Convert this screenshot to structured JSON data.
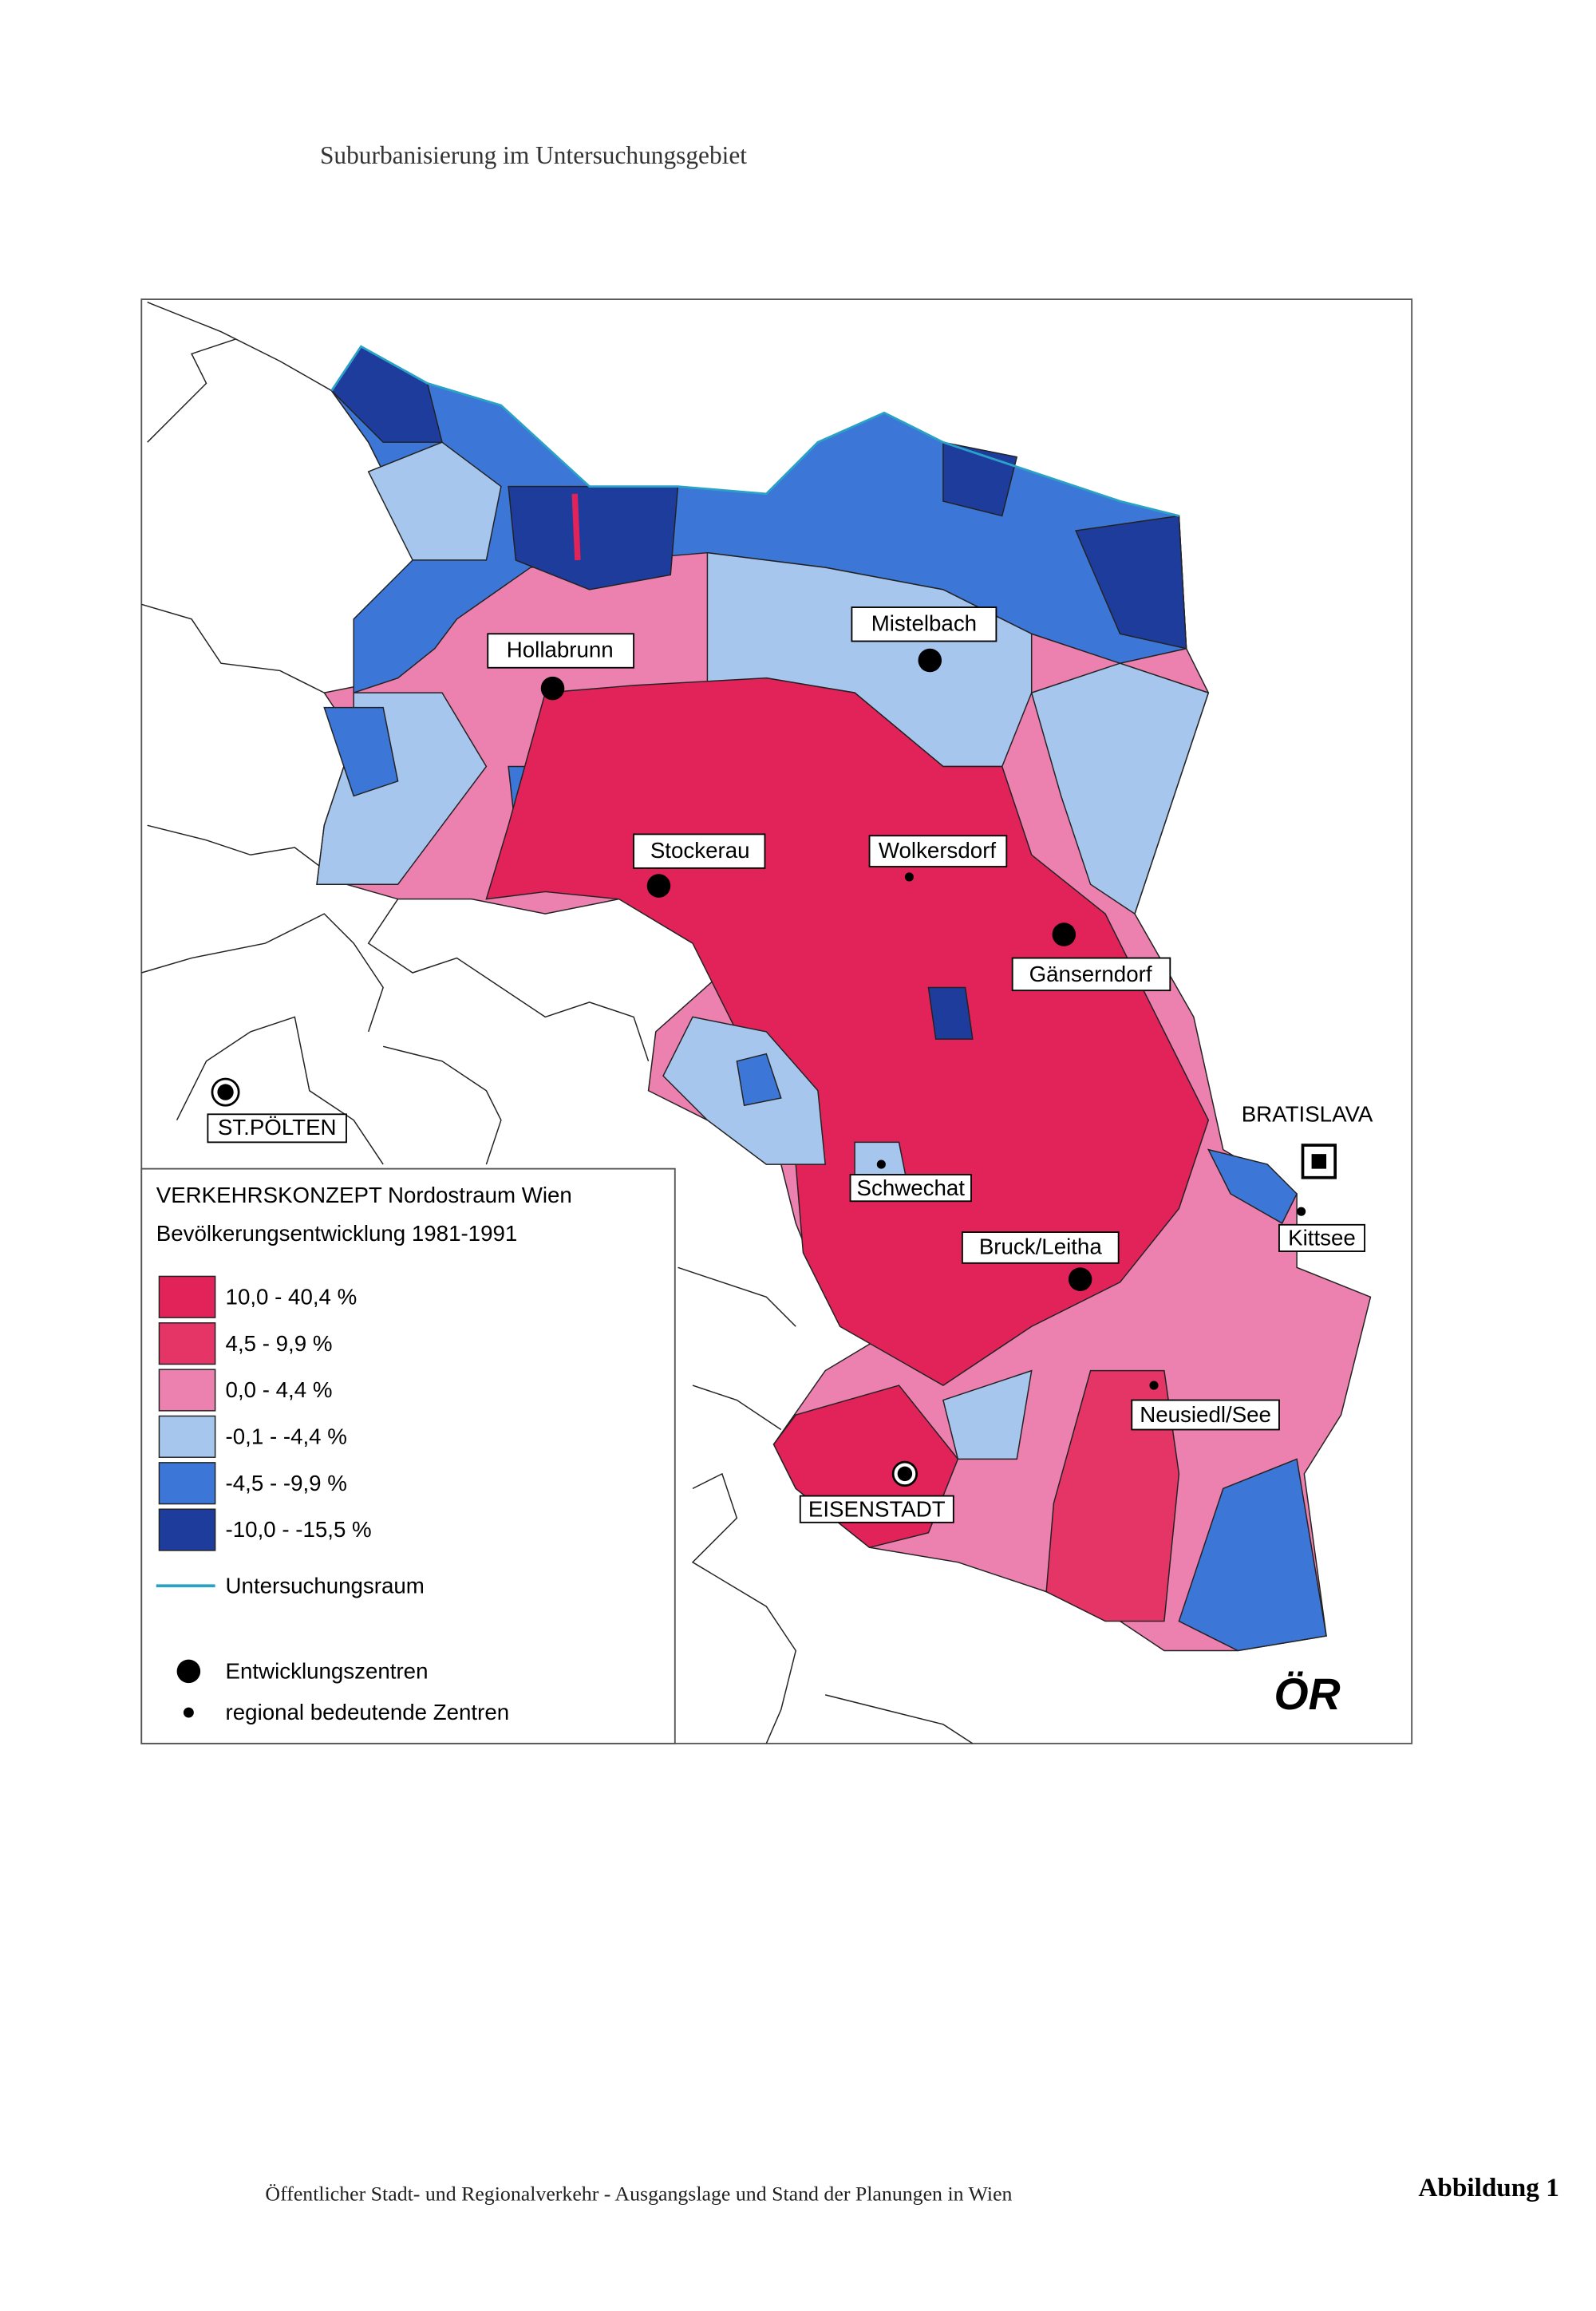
{
  "title": "Suburbanisierung im Untersuchungsgebiet",
  "map": {
    "places": [
      {
        "label": "Hollabrunn"
      },
      {
        "label": "Mistelbach"
      },
      {
        "label": "Stockerau"
      },
      {
        "label": "Wolkersdorf"
      },
      {
        "label": "Gänserndorf"
      },
      {
        "label": "ST.PÖLTEN"
      },
      {
        "label": "BRATISLAVA"
      },
      {
        "label": "Schwechat"
      },
      {
        "label": "Kittsee"
      },
      {
        "label": "Bruck/Leitha"
      },
      {
        "label": "Neusiedl/See"
      },
      {
        "label": "EISENSTADT"
      }
    ],
    "legend": {
      "title": "VERKEHRSKONZEPT Nordostraum Wien",
      "subtitle": "Bevölkerungsentwicklung 1981-1991",
      "classes": [
        {
          "label": "10,0 - 40,4 %",
          "color": "#e2235a"
        },
        {
          "label": "4,5 - 9,9 %",
          "color": "#e43566"
        },
        {
          "label": "0,0 - 4,4 %",
          "color": "#ec80ae"
        },
        {
          "label": "-0,1 - -4,4 %",
          "color": "#a6c6ee"
        },
        {
          "label": "-4,5 - -9,9 %",
          "color": "#3c76d6"
        },
        {
          "label": "-10,0 - -15,5 %",
          "color": "#1d3c9c"
        }
      ],
      "boundary": "Untersuchungsraum",
      "symbols": [
        "Entwicklungszentren",
        "regional bedeutende Zentren"
      ]
    },
    "logo": "ÖR"
  },
  "footer": {
    "text": "Öffentlicher Stadt- und Regionalverkehr - Ausgangslage und Stand der Planungen in Wien",
    "figure": "Abbildung 1"
  }
}
